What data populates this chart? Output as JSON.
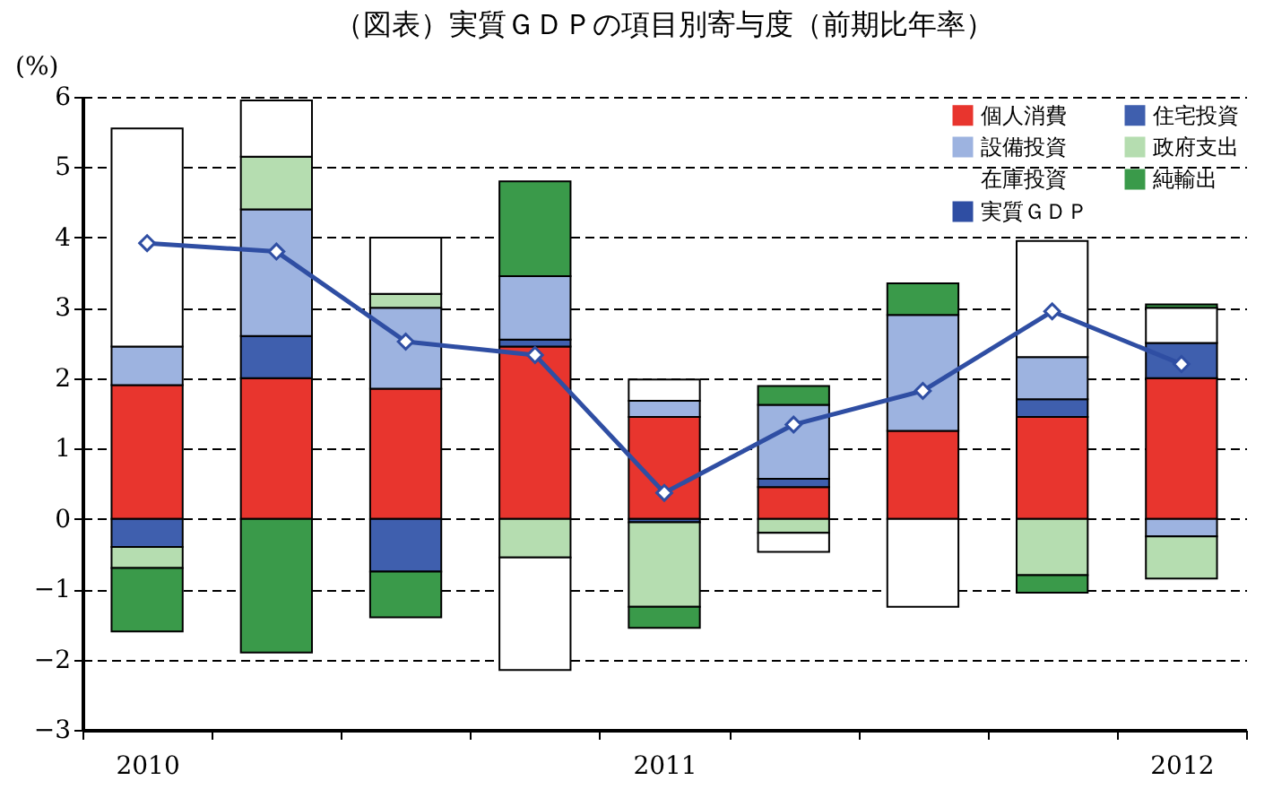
{
  "chart_data": {
    "type": "bar",
    "title": "（図表）実質ＧＤＰの項目別寄与度（前期比年率）",
    "ylabel": "(%)",
    "categories": [
      "2010",
      null,
      null,
      null,
      "2011",
      null,
      null,
      null,
      "2012"
    ],
    "stacked": true,
    "ylim": [
      -3,
      6
    ],
    "yticks": [
      -3,
      -2,
      -1,
      0,
      1,
      2,
      3,
      4,
      5,
      6
    ],
    "grid": "y",
    "legend": "top right",
    "series": [
      {
        "name": "個人消費",
        "color": "#e8352e",
        "values": [
          1.9,
          2.0,
          1.85,
          2.45,
          1.45,
          0.45,
          1.25,
          1.45,
          2.0
        ]
      },
      {
        "name": "住宅投資",
        "color": "#3f5fae",
        "values": [
          -0.4,
          0.6,
          -0.75,
          0.1,
          -0.05,
          0.12,
          null,
          0.25,
          0.5
        ]
      },
      {
        "name": "設備投資",
        "color": "#9db3e0",
        "values": [
          0.55,
          1.8,
          1.15,
          0.9,
          0.23,
          1.05,
          1.65,
          0.6,
          -0.25
        ]
      },
      {
        "name": "政府支出",
        "color": "#b5ddb0",
        "values": [
          -0.3,
          0.75,
          0.2,
          -0.55,
          -1.2,
          -0.2,
          null,
          -0.8,
          -0.6
        ]
      },
      {
        "name": "在庫投資",
        "color": "#ffffff",
        "values": [
          3.1,
          0.8,
          0.8,
          -1.6,
          0.3,
          -0.27,
          -1.25,
          1.65,
          0.5
        ]
      },
      {
        "name": "純輸出",
        "color": "#3a9a4a",
        "values": [
          -0.9,
          -1.9,
          -0.65,
          1.35,
          -0.3,
          0.27,
          0.45,
          -0.25,
          0.05
        ]
      },
      {
        "name": "実質ＧＤＰ",
        "type": "line",
        "color": "#2f4ea3",
        "marker": "diamond",
        "values": [
          3.92,
          3.8,
          2.52,
          2.33,
          0.37,
          1.34,
          1.82,
          2.95,
          2.2
        ]
      }
    ]
  }
}
